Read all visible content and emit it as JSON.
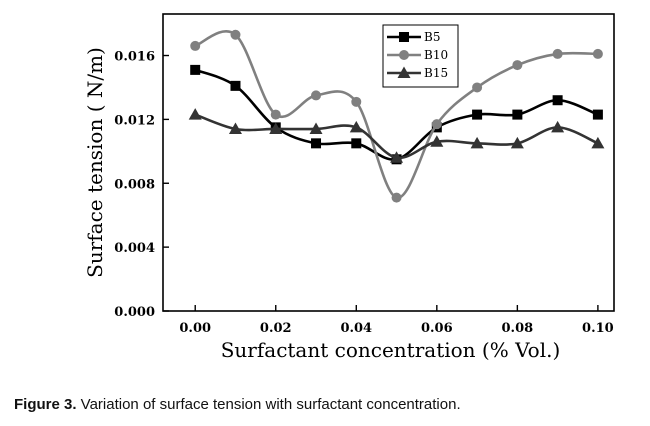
{
  "chart_data": {
    "type": "line",
    "xlabel": "Surfactant concentration (% Vol.)",
    "ylabel": "Surface tension ( N/m)",
    "xlim": [
      -0.008,
      0.104
    ],
    "ylim": [
      0.0,
      0.0186
    ],
    "xticks": [
      "0.00",
      "0.02",
      "0.04",
      "0.06",
      "0.08",
      "0.10"
    ],
    "xtick_values": [
      0.0,
      0.02,
      0.04,
      0.06,
      0.08,
      0.1
    ],
    "yticks": [
      "0.000",
      "0.004",
      "0.008",
      "0.012",
      "0.016"
    ],
    "ytick_values": [
      0.0,
      0.004,
      0.008,
      0.012,
      0.016
    ],
    "x": [
      0.0,
      0.01,
      0.02,
      0.03,
      0.04,
      0.05,
      0.06,
      0.07,
      0.08,
      0.09,
      0.1
    ],
    "series": [
      {
        "name": "B5",
        "marker": "square",
        "color": "#000000",
        "values": [
          0.0151,
          0.0141,
          0.0115,
          0.0105,
          0.0105,
          0.0095,
          0.0115,
          0.0123,
          0.0123,
          0.0132,
          0.0123
        ]
      },
      {
        "name": "B10",
        "marker": "circle",
        "color": "#808080",
        "values": [
          0.0166,
          0.0173,
          0.0123,
          0.0135,
          0.0131,
          0.0071,
          0.0117,
          0.014,
          0.0154,
          0.0161,
          0.0161
        ]
      },
      {
        "name": "B15",
        "marker": "triangle",
        "color": "#333333",
        "values": [
          0.0123,
          0.0114,
          0.0114,
          0.0114,
          0.0115,
          0.0096,
          0.0106,
          0.0105,
          0.0105,
          0.0115,
          0.0105
        ]
      }
    ],
    "legend_position": "top-right"
  },
  "caption": {
    "label": "Figure 3.",
    "text": " Variation of surface tension with surfactant concentration."
  }
}
